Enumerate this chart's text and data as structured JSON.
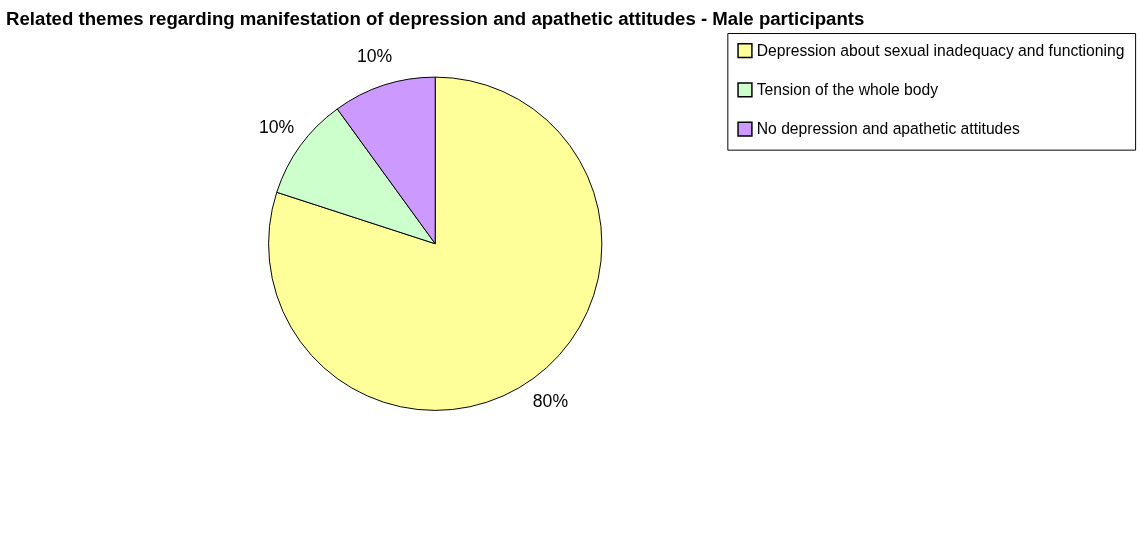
{
  "chart_data": {
    "type": "pie",
    "title": "Related themes regarding manifestation of depression and apathetic attitudes - Male participants",
    "categories": [
      "Depression about sexual inadequacy and functioning",
      "Tension of the whole body",
      "No depression and apathetic attitudes"
    ],
    "values": [
      80,
      10,
      10
    ],
    "colors": [
      "#ffff99",
      "#ccffcc",
      "#cc99ff"
    ],
    "value_labels": [
      "80%",
      "10%",
      "10%"
    ],
    "legend": "right"
  }
}
